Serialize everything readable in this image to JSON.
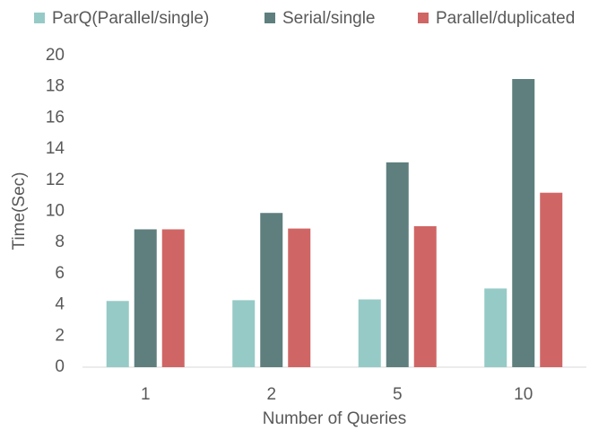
{
  "chart_data": {
    "type": "bar",
    "categories": [
      "1",
      "2",
      "5",
      "10"
    ],
    "series": [
      {
        "name": "ParQ(Parallel/single)",
        "color": "#96cac6",
        "values": [
          4.25,
          4.3,
          4.35,
          5.05
        ]
      },
      {
        "name": "Serial/single",
        "color": "#5e7f7e",
        "values": [
          8.85,
          9.9,
          13.15,
          18.5
        ]
      },
      {
        "name": "Parallel/duplicated",
        "color": "#cf6665",
        "values": [
          8.85,
          8.9,
          9.05,
          11.2
        ]
      }
    ],
    "ylabel": "Time(Sec)",
    "xlabel": "Number of Queries",
    "ylim": [
      0,
      20
    ],
    "yticks": [
      0,
      2,
      4,
      6,
      8,
      10,
      12,
      14,
      16,
      18,
      20
    ],
    "grid": false,
    "legend": "top"
  }
}
